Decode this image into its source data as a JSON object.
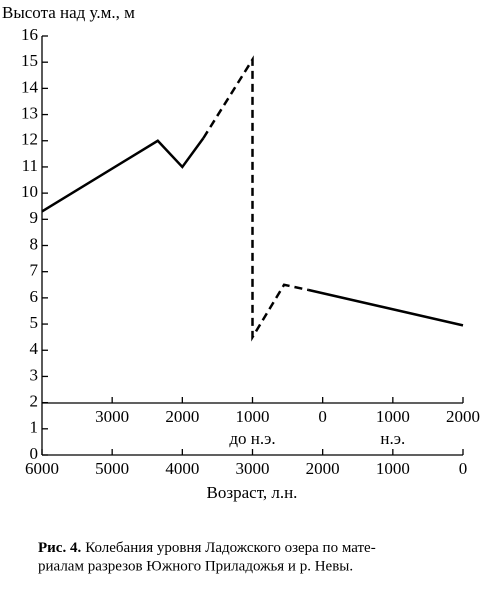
{
  "chart_data": {
    "type": "line",
    "ylabel": "Высота над у.м., м",
    "xlabel": "Возраст, л.н.",
    "x": [
      6000,
      4350,
      4000,
      3700,
      3000,
      3000,
      2550,
      2200,
      0
    ],
    "series": [
      {
        "color": "#000000",
        "dashed": false,
        "values": [
          9.3,
          12,
          11,
          12.1,
          null,
          null,
          null,
          6.3,
          4.95
        ]
      },
      {
        "color": "#000000",
        "dashed": true,
        "values": [
          null,
          null,
          null,
          12.1,
          15.1,
          4.5,
          6.5,
          6.3,
          null
        ]
      }
    ],
    "xlim": [
      6000,
      0
    ],
    "xticks": [
      6000,
      5000,
      4000,
      3000,
      2000,
      1000,
      0
    ],
    "x2ticks": [
      {
        "value": 5000,
        "label": "3000"
      },
      {
        "value": 4000,
        "label": "2000"
      },
      {
        "value": 3000,
        "label": "1000"
      },
      {
        "value": 2000,
        "label": "0"
      },
      {
        "value": 1000,
        "label": "1000"
      },
      {
        "value": 0,
        "label": "2000"
      }
    ],
    "x2_era_labels": [
      {
        "value": 3000,
        "label": "до н.э."
      },
      {
        "value": 1000,
        "label": "н.э."
      }
    ],
    "ylim": [
      0,
      16
    ],
    "yticks": [
      0,
      1,
      2,
      3,
      4,
      5,
      6,
      7,
      8,
      9,
      10,
      11,
      12,
      13,
      14,
      15,
      16
    ],
    "caption_label": "Рис. 4.",
    "caption_lines": [
      "Колебания уровня Ладожского озера по мате-",
      "риалам разрезов Южного Приладожья и р. Невы."
    ]
  }
}
